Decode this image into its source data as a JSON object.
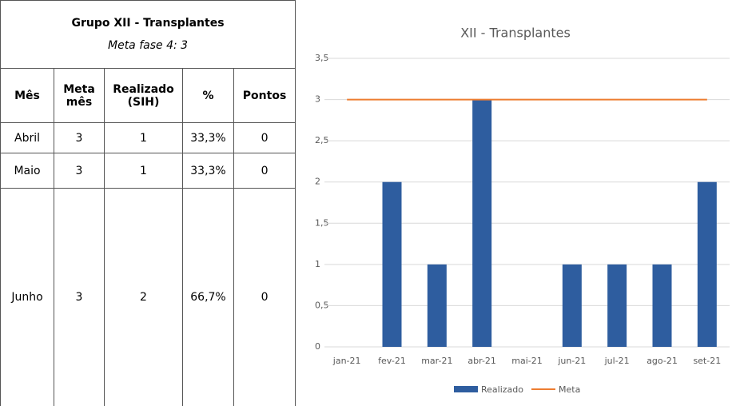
{
  "table": {
    "title": "Grupo XII - Transplantes",
    "subtitle": "Meta fase 4: 3",
    "columns": [
      "Mês",
      "Meta mês",
      "Realizado (SIH)",
      "%",
      "Pontos"
    ],
    "rows": [
      [
        "Abril",
        "3",
        "1",
        "33,3%",
        "0"
      ],
      [
        "Maio",
        "3",
        "1",
        "33,3%",
        "0"
      ],
      [
        "Junho",
        "3",
        "2",
        "66,7%",
        "0"
      ]
    ]
  },
  "chart_data": {
    "type": "bar",
    "title": "XII - Transplantes",
    "categories": [
      "jan-21",
      "fev-21",
      "mar-21",
      "abr-21",
      "mai-21",
      "jun-21",
      "jul-21",
      "ago-21",
      "set-21"
    ],
    "series": [
      {
        "name": "Realizado",
        "color": "#2e5d9f",
        "values": [
          0,
          2,
          1,
          3,
          0,
          1,
          1,
          1,
          2
        ]
      },
      {
        "name": "Meta",
        "type": "line",
        "color": "#ed7d31",
        "values": [
          3,
          3,
          3,
          3,
          3,
          3,
          3,
          3,
          3
        ]
      }
    ],
    "ylim": [
      0,
      3.5
    ],
    "yticks": [
      0,
      {
        "value": 0.5,
        "label": "0,5"
      },
      1,
      {
        "value": 1.5,
        "label": "1,5"
      },
      2,
      {
        "value": 2.5,
        "label": "2,5"
      },
      3,
      {
        "value": 3.5,
        "label": "3,5"
      }
    ],
    "grid": true,
    "legend": "bottom"
  }
}
